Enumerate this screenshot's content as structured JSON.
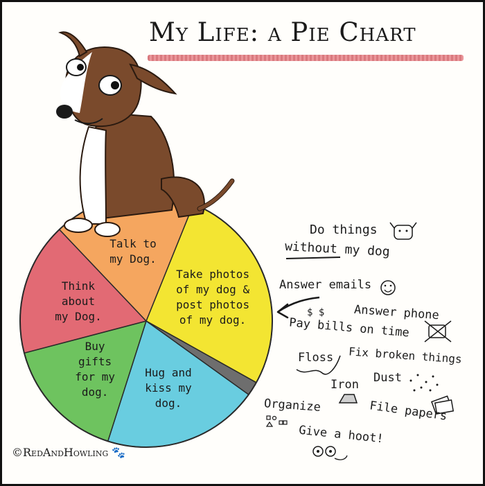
{
  "title": "My Life: a Pie Chart",
  "copyright": "©RedAndHowling",
  "chart_data": {
    "type": "pie",
    "title": "My Life: a Pie Chart",
    "slices": [
      {
        "label": "Take photos of my dog & post photos of my dog.",
        "value": 27,
        "color": "#f3e532"
      },
      {
        "label": "Sliver (everything else)",
        "value": 1.8,
        "color": "#6e6e6e"
      },
      {
        "label": "Hug and kiss my dog.",
        "value": 20,
        "color": "#69cde0"
      },
      {
        "label": "Buy gifts for my dog.",
        "value": 16,
        "color": "#6ec35f"
      },
      {
        "label": "Think about my Dog.",
        "value": 17,
        "color": "#e26a74"
      },
      {
        "label": "Talk to my Dog.",
        "value": 18.2,
        "color": "#f5a65f"
      }
    ],
    "slice_text": [
      [
        "Take photos",
        "of my dog &",
        "post photos",
        "of my dog."
      ],
      [],
      [
        "Hug and",
        "kiss my",
        "dog."
      ],
      [
        "Buy",
        "gifts",
        "for my",
        "dog."
      ],
      [
        "Think",
        "about",
        "my Dog."
      ],
      [
        "Talk to",
        "my Dog."
      ]
    ]
  },
  "notes": {
    "do_things_1": "Do things",
    "do_things_2": "without my dog",
    "answer_emails": "Answer emails",
    "answer_phone": "Answer phone",
    "pay_bills": "Pay bills on time",
    "floss": "Floss",
    "fix": "Fix broken things",
    "dust": "Dust",
    "iron": "Iron",
    "organize": "Organize",
    "file_papers": "File papers",
    "give_hoot": "Give a hoot!"
  }
}
